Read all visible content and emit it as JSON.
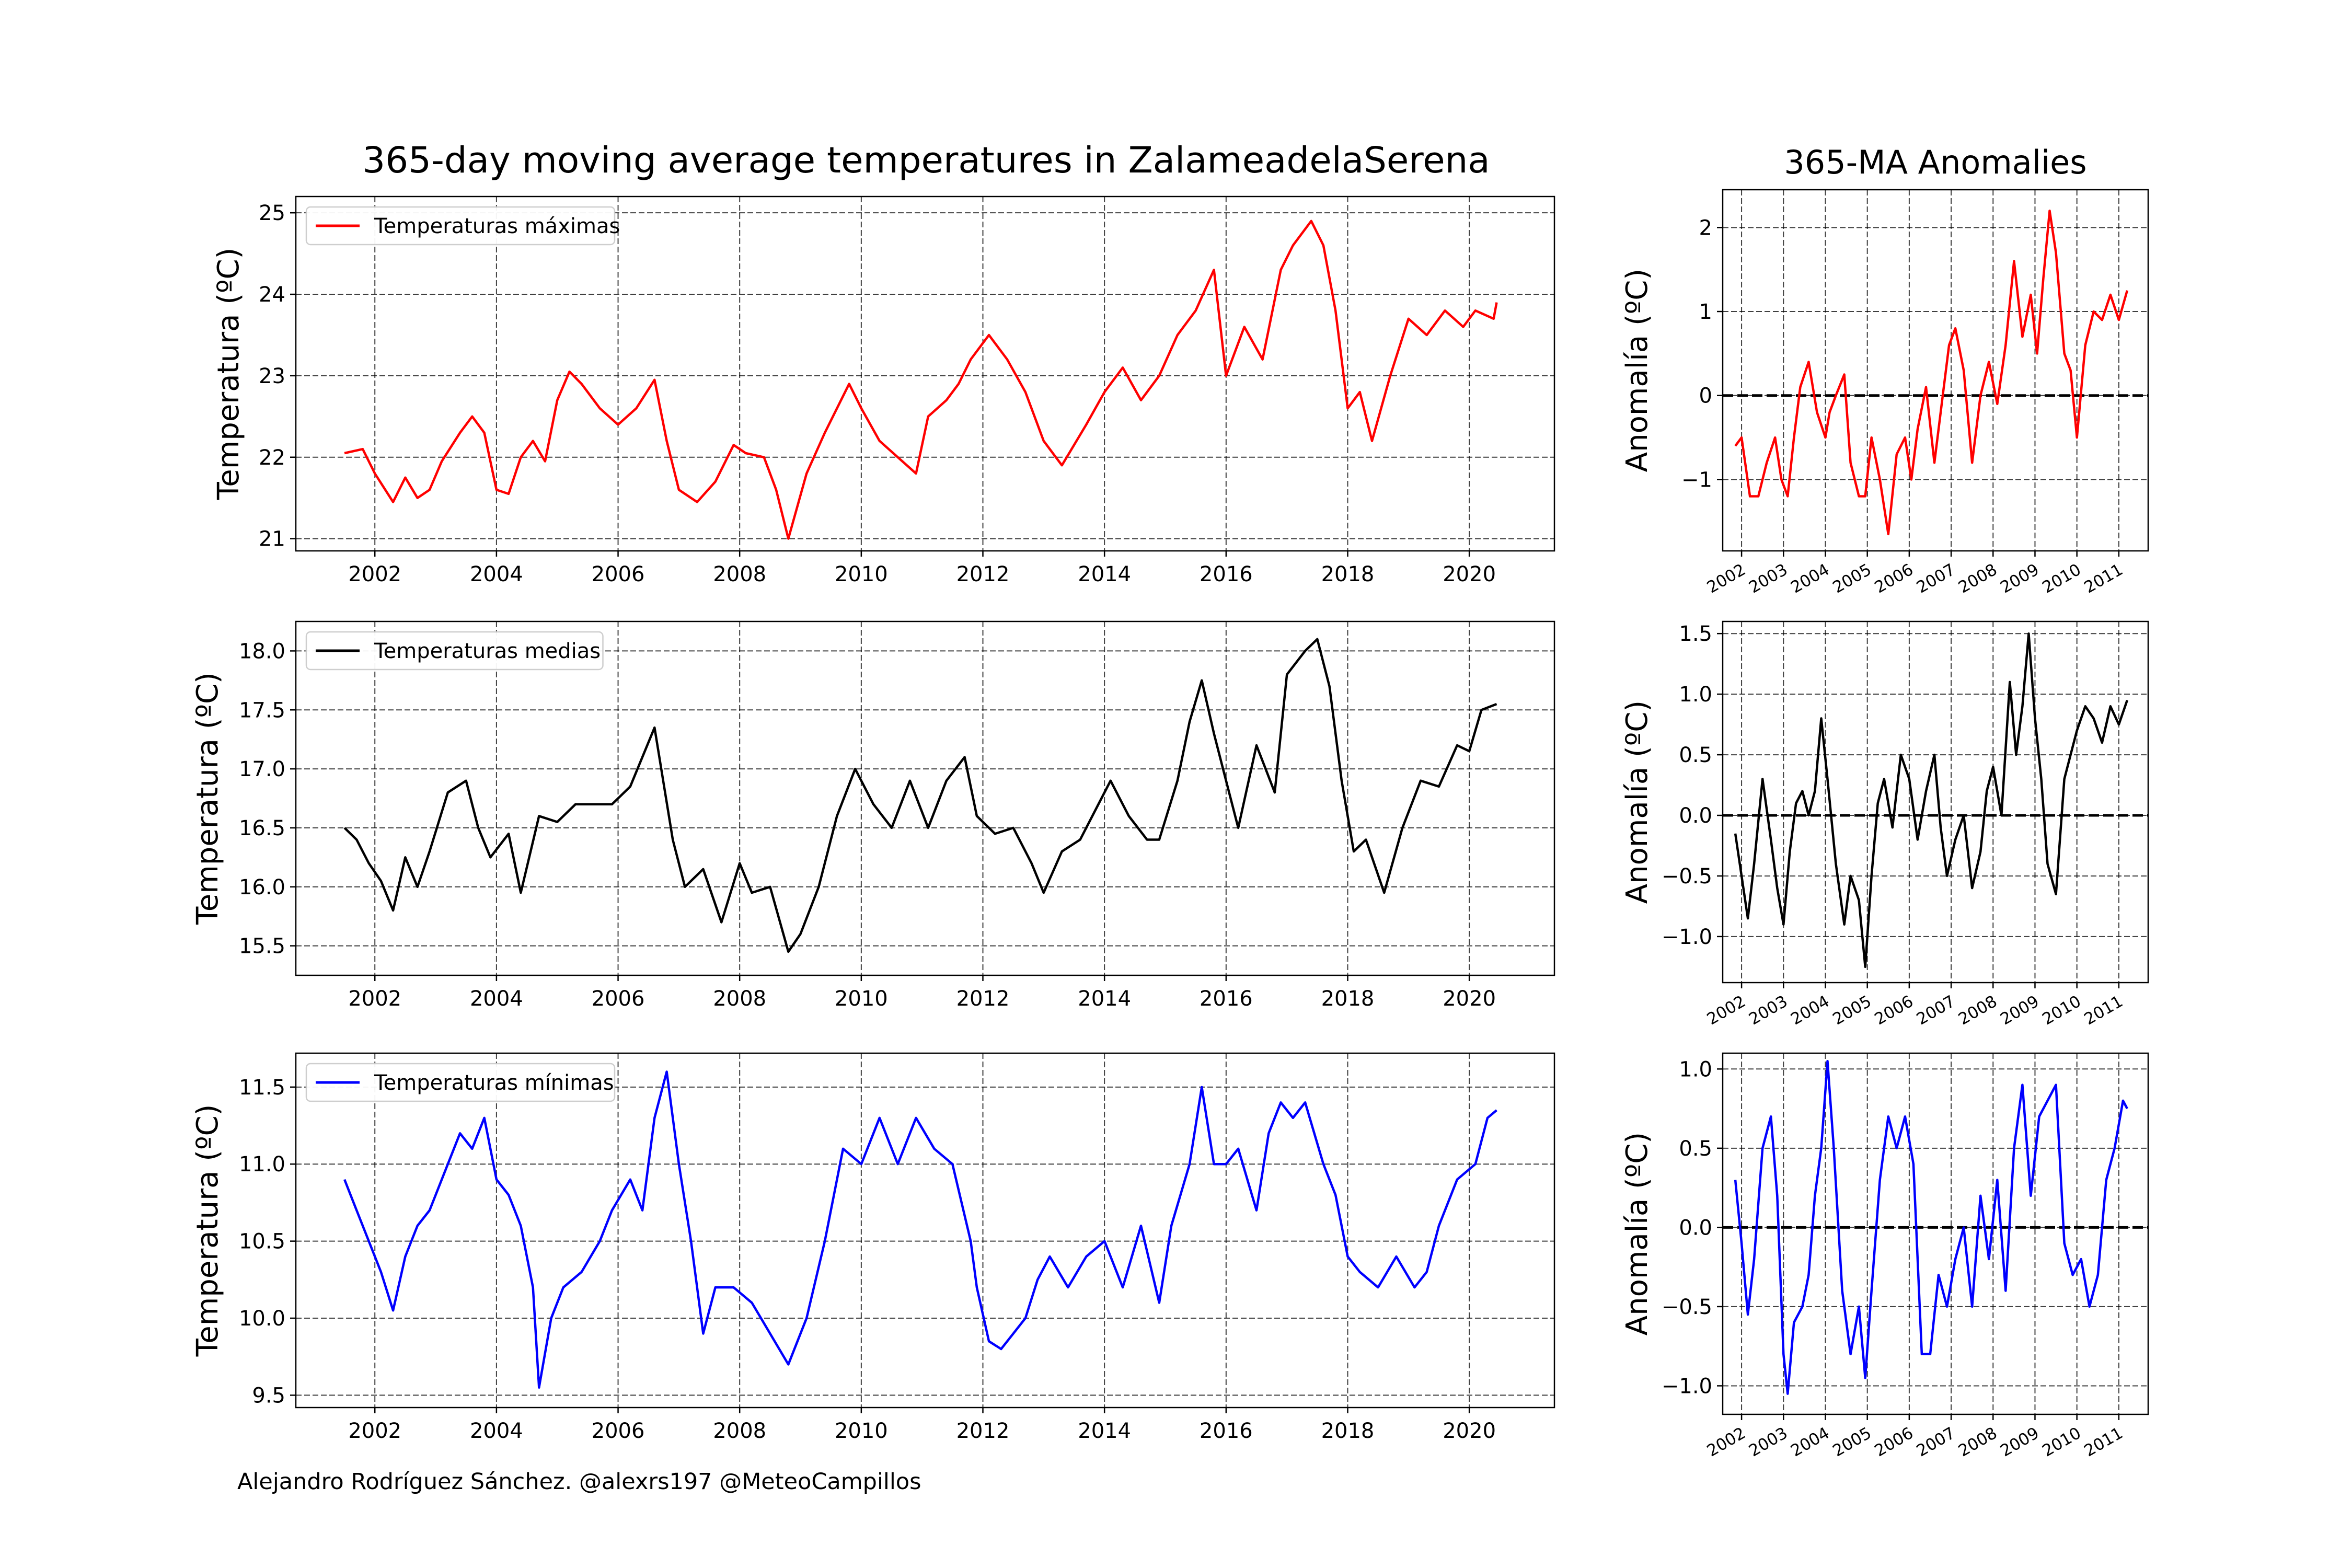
{
  "figure": {
    "main_title": "365-day moving average temperatures in ZalameadelaSerena",
    "side_title": "365-MA Anomalies",
    "credit": "Alejandro Rodríguez Sánchez. @alexrs197 @MeteoCampillos"
  },
  "chart_data": [
    {
      "id": "max",
      "type": "line",
      "title": "365-day moving average temperatures in ZalameadelaSerena",
      "ylabel": "Temperatura (ºC)",
      "legend": "Temperaturas máximas",
      "legend_position": "upper-left",
      "color": "#ff0000",
      "grid": true,
      "xlim": [
        2000.7,
        2021.4
      ],
      "ylim": [
        20.85,
        25.2
      ],
      "x_ticks": [
        2002,
        2004,
        2006,
        2008,
        2010,
        2012,
        2014,
        2016,
        2018,
        2020
      ],
      "y_ticks": [
        21,
        22,
        23,
        24,
        25
      ],
      "series": [
        {
          "name": "Temperaturas máximas",
          "x": [
            2001.5,
            2001.8,
            2002.0,
            2002.3,
            2002.5,
            2002.7,
            2002.9,
            2003.1,
            2003.4,
            2003.6,
            2003.8,
            2004.0,
            2004.2,
            2004.4,
            2004.6,
            2004.8,
            2005.0,
            2005.2,
            2005.4,
            2005.7,
            2006.0,
            2006.3,
            2006.6,
            2006.8,
            2007.0,
            2007.3,
            2007.6,
            2007.9,
            2008.1,
            2008.4,
            2008.6,
            2008.8,
            2009.1,
            2009.4,
            2009.8,
            2010.0,
            2010.3,
            2010.6,
            2010.9,
            2011.1,
            2011.4,
            2011.6,
            2011.8,
            2012.1,
            2012.4,
            2012.7,
            2013.0,
            2013.3,
            2013.7,
            2014.0,
            2014.3,
            2014.6,
            2014.9,
            2015.2,
            2015.5,
            2015.8,
            2016.0,
            2016.3,
            2016.6,
            2016.9,
            2017.1,
            2017.4,
            2017.6,
            2017.8,
            2018.0,
            2018.2,
            2018.4,
            2018.7,
            2019.0,
            2019.3,
            2019.6,
            2019.9,
            2020.1,
            2020.4,
            2020.45
          ],
          "y": [
            22.05,
            22.1,
            21.8,
            21.45,
            21.75,
            21.5,
            21.6,
            21.95,
            22.3,
            22.5,
            22.3,
            21.6,
            21.55,
            22.0,
            22.2,
            21.95,
            22.7,
            23.05,
            22.9,
            22.6,
            22.4,
            22.6,
            22.95,
            22.2,
            21.6,
            21.45,
            21.7,
            22.15,
            22.05,
            22.0,
            21.6,
            21.0,
            21.8,
            22.3,
            22.9,
            22.6,
            22.2,
            22.0,
            21.8,
            22.5,
            22.7,
            22.9,
            23.2,
            23.5,
            23.2,
            22.8,
            22.2,
            21.9,
            22.4,
            22.8,
            23.1,
            22.7,
            23.0,
            23.5,
            23.8,
            24.3,
            23.0,
            23.6,
            23.2,
            24.3,
            24.6,
            24.9,
            24.6,
            23.8,
            22.6,
            22.8,
            22.2,
            23.0,
            23.7,
            23.5,
            23.8,
            23.6,
            23.8,
            23.7,
            23.9
          ]
        }
      ]
    },
    {
      "id": "mean",
      "type": "line",
      "ylabel": "Temperatura (ºC)",
      "legend": "Temperaturas medias",
      "legend_position": "upper-left",
      "color": "#000000",
      "grid": true,
      "xlim": [
        2000.7,
        2021.4
      ],
      "ylim": [
        15.25,
        18.25
      ],
      "x_ticks": [
        2002,
        2004,
        2006,
        2008,
        2010,
        2012,
        2014,
        2016,
        2018,
        2020
      ],
      "y_ticks": [
        15.5,
        16.0,
        16.5,
        17.0,
        17.5,
        18.0
      ],
      "series": [
        {
          "name": "Temperaturas medias",
          "x": [
            2001.5,
            2001.7,
            2001.9,
            2002.1,
            2002.3,
            2002.5,
            2002.7,
            2002.9,
            2003.2,
            2003.5,
            2003.7,
            2003.9,
            2004.2,
            2004.4,
            2004.7,
            2005.0,
            2005.3,
            2005.6,
            2005.9,
            2006.2,
            2006.6,
            2006.9,
            2007.1,
            2007.4,
            2007.7,
            2008.0,
            2008.2,
            2008.5,
            2008.8,
            2009.0,
            2009.3,
            2009.6,
            2009.9,
            2010.2,
            2010.5,
            2010.8,
            2011.1,
            2011.4,
            2011.7,
            2011.9,
            2012.2,
            2012.5,
            2012.8,
            2013.0,
            2013.3,
            2013.6,
            2013.9,
            2014.1,
            2014.4,
            2014.7,
            2014.9,
            2015.2,
            2015.4,
            2015.6,
            2015.8,
            2016.0,
            2016.2,
            2016.5,
            2016.8,
            2017.0,
            2017.3,
            2017.5,
            2017.7,
            2017.9,
            2018.1,
            2018.3,
            2018.6,
            2018.9,
            2019.2,
            2019.5,
            2019.8,
            2020.0,
            2020.2,
            2020.45
          ],
          "y": [
            16.5,
            16.4,
            16.2,
            16.05,
            15.8,
            16.25,
            16.0,
            16.3,
            16.8,
            16.9,
            16.5,
            16.25,
            16.45,
            15.95,
            16.6,
            16.55,
            16.7,
            16.7,
            16.7,
            16.85,
            17.35,
            16.4,
            16.0,
            16.15,
            15.7,
            16.2,
            15.95,
            16.0,
            15.45,
            15.6,
            16.0,
            16.6,
            17.0,
            16.7,
            16.5,
            16.9,
            16.5,
            16.9,
            17.1,
            16.6,
            16.45,
            16.5,
            16.2,
            15.95,
            16.3,
            16.4,
            16.7,
            16.9,
            16.6,
            16.4,
            16.4,
            16.9,
            17.4,
            17.75,
            17.3,
            16.9,
            16.5,
            17.2,
            16.8,
            17.8,
            18.0,
            18.1,
            17.7,
            16.9,
            16.3,
            16.4,
            15.95,
            16.5,
            16.9,
            16.85,
            17.2,
            17.15,
            17.5,
            17.55
          ]
        }
      ]
    },
    {
      "id": "min",
      "type": "line",
      "ylabel": "Temperatura (ºC)",
      "legend": "Temperaturas mínimas",
      "legend_position": "upper-left",
      "color": "#0000ff",
      "grid": true,
      "xlim": [
        2000.7,
        2021.4
      ],
      "ylim": [
        9.42,
        11.72
      ],
      "x_ticks": [
        2002,
        2004,
        2006,
        2008,
        2010,
        2012,
        2014,
        2016,
        2018,
        2020
      ],
      "y_ticks": [
        9.5,
        10.0,
        10.5,
        11.0,
        11.5
      ],
      "series": [
        {
          "name": "Temperaturas mínimas",
          "x": [
            2001.5,
            2001.7,
            2001.9,
            2002.1,
            2002.3,
            2002.5,
            2002.7,
            2002.9,
            2003.1,
            2003.4,
            2003.6,
            2003.8,
            2004.0,
            2004.2,
            2004.4,
            2004.6,
            2004.7,
            2004.9,
            2005.1,
            2005.4,
            2005.7,
            2005.9,
            2006.2,
            2006.4,
            2006.6,
            2006.8,
            2007.0,
            2007.2,
            2007.4,
            2007.6,
            2007.9,
            2008.2,
            2008.5,
            2008.8,
            2009.1,
            2009.4,
            2009.7,
            2010.0,
            2010.3,
            2010.6,
            2010.9,
            2011.2,
            2011.5,
            2011.8,
            2011.9,
            2012.1,
            2012.3,
            2012.5,
            2012.7,
            2012.9,
            2013.1,
            2013.4,
            2013.7,
            2014.0,
            2014.3,
            2014.6,
            2014.9,
            2015.1,
            2015.4,
            2015.6,
            2015.8,
            2016.0,
            2016.2,
            2016.5,
            2016.7,
            2016.9,
            2017.1,
            2017.3,
            2017.6,
            2017.8,
            2018.0,
            2018.2,
            2018.5,
            2018.8,
            2019.1,
            2019.3,
            2019.5,
            2019.8,
            2020.1,
            2020.3,
            2020.45
          ],
          "y": [
            10.9,
            10.7,
            10.5,
            10.3,
            10.05,
            10.4,
            10.6,
            10.7,
            10.9,
            11.2,
            11.1,
            11.3,
            10.9,
            10.8,
            10.6,
            10.2,
            9.55,
            10.0,
            10.2,
            10.3,
            10.5,
            10.7,
            10.9,
            10.7,
            11.3,
            11.6,
            11.0,
            10.5,
            9.9,
            10.2,
            10.2,
            10.1,
            9.9,
            9.7,
            10.0,
            10.5,
            11.1,
            11.0,
            11.3,
            11.0,
            11.3,
            11.1,
            11.0,
            10.5,
            10.2,
            9.85,
            9.8,
            9.9,
            10.0,
            10.25,
            10.4,
            10.2,
            10.4,
            10.5,
            10.2,
            10.6,
            10.1,
            10.6,
            11.0,
            11.5,
            11.0,
            11.0,
            11.1,
            10.7,
            11.2,
            11.4,
            11.3,
            11.4,
            11.0,
            10.8,
            10.4,
            10.3,
            10.2,
            10.4,
            10.2,
            10.3,
            10.6,
            10.9,
            11.0,
            11.3,
            11.35
          ]
        }
      ]
    },
    {
      "id": "anom_max",
      "type": "line",
      "title": "365-MA Anomalies",
      "ylabel": "Anomalía (ºC)",
      "color": "#ff0000",
      "grid": true,
      "baseline": 0,
      "xlim": [
        2001.55,
        2011.7
      ],
      "ylim": [
        -1.85,
        2.45
      ],
      "x_ticks": [
        2002,
        2003,
        2004,
        2005,
        2006,
        2007,
        2008,
        2009,
        2010,
        2011
      ],
      "y_ticks": [
        -1,
        0,
        1,
        2
      ],
      "series": [
        {
          "name": "",
          "x": [
            2001.85,
            2002.0,
            2002.2,
            2002.4,
            2002.6,
            2002.8,
            2002.95,
            2003.1,
            2003.25,
            2003.4,
            2003.6,
            2003.8,
            2004.0,
            2004.1,
            2004.25,
            2004.45,
            2004.6,
            2004.8,
            2004.95,
            2005.1,
            2005.3,
            2005.5,
            2005.7,
            2005.9,
            2006.05,
            2006.2,
            2006.4,
            2006.6,
            2006.8,
            2006.95,
            2007.1,
            2007.3,
            2007.5,
            2007.7,
            2007.9,
            2008.1,
            2008.3,
            2008.5,
            2008.7,
            2008.9,
            2009.05,
            2009.2,
            2009.35,
            2009.5,
            2009.7,
            2009.85,
            2010.0,
            2010.2,
            2010.4,
            2010.6,
            2010.8,
            2011.0,
            2011.2
          ],
          "y": [
            -0.6,
            -0.5,
            -1.2,
            -1.2,
            -0.8,
            -0.5,
            -1.0,
            -1.2,
            -0.5,
            0.1,
            0.4,
            -0.2,
            -0.5,
            -0.2,
            0.0,
            0.25,
            -0.8,
            -1.2,
            -1.2,
            -0.5,
            -1.0,
            -1.65,
            -0.7,
            -0.5,
            -1.0,
            -0.4,
            0.1,
            -0.8,
            0.0,
            0.6,
            0.8,
            0.3,
            -0.8,
            0.0,
            0.4,
            -0.1,
            0.6,
            1.6,
            0.7,
            1.2,
            0.5,
            1.4,
            2.2,
            1.7,
            0.5,
            0.3,
            -0.5,
            0.6,
            1.0,
            0.9,
            1.2,
            0.9,
            1.25
          ]
        }
      ]
    },
    {
      "id": "anom_mean",
      "type": "line",
      "ylabel": "Anomalía (ºC)",
      "color": "#000000",
      "grid": true,
      "baseline": 0,
      "xlim": [
        2001.55,
        2011.7
      ],
      "ylim": [
        -1.38,
        1.6
      ],
      "x_ticks": [
        2002,
        2003,
        2004,
        2005,
        2006,
        2007,
        2008,
        2009,
        2010,
        2011
      ],
      "y_ticks": [
        -1.0,
        -0.5,
        0.0,
        0.5,
        1.0,
        1.5
      ],
      "series": [
        {
          "name": "",
          "x": [
            2001.85,
            2002.0,
            2002.15,
            2002.3,
            2002.5,
            2002.7,
            2002.85,
            2003.0,
            2003.15,
            2003.3,
            2003.45,
            2003.6,
            2003.75,
            2003.9,
            2004.05,
            2004.25,
            2004.45,
            2004.6,
            2004.8,
            2004.95,
            2005.1,
            2005.25,
            2005.4,
            2005.6,
            2005.8,
            2006.0,
            2006.2,
            2006.4,
            2006.6,
            2006.75,
            2006.9,
            2007.1,
            2007.3,
            2007.5,
            2007.7,
            2007.85,
            2008.0,
            2008.2,
            2008.4,
            2008.55,
            2008.7,
            2008.85,
            2009.0,
            2009.15,
            2009.3,
            2009.5,
            2009.7,
            2009.85,
            2010.0,
            2010.2,
            2010.4,
            2010.6,
            2010.8,
            2011.0,
            2011.2
          ],
          "y": [
            -0.15,
            -0.5,
            -0.85,
            -0.4,
            0.3,
            -0.2,
            -0.6,
            -0.9,
            -0.3,
            0.1,
            0.2,
            0.0,
            0.2,
            0.8,
            0.3,
            -0.4,
            -0.9,
            -0.5,
            -0.7,
            -1.25,
            -0.5,
            0.1,
            0.3,
            -0.1,
            0.5,
            0.3,
            -0.2,
            0.2,
            0.5,
            -0.1,
            -0.5,
            -0.2,
            0.0,
            -0.6,
            -0.3,
            0.2,
            0.4,
            0.0,
            1.1,
            0.5,
            0.9,
            1.5,
            0.8,
            0.3,
            -0.4,
            -0.65,
            0.3,
            0.5,
            0.7,
            0.9,
            0.8,
            0.6,
            0.9,
            0.75,
            0.95
          ]
        }
      ]
    },
    {
      "id": "anom_min",
      "type": "line",
      "ylabel": "Anomalía (ºC)",
      "color": "#0000ff",
      "grid": true,
      "baseline": 0,
      "xlim": [
        2001.55,
        2011.7
      ],
      "ylim": [
        -1.18,
        1.1
      ],
      "x_ticks": [
        2002,
        2003,
        2004,
        2005,
        2006,
        2007,
        2008,
        2009,
        2010,
        2011
      ],
      "y_ticks": [
        -1.0,
        -0.5,
        0.0,
        0.5,
        1.0
      ],
      "series": [
        {
          "name": "",
          "x": [
            2001.85,
            2002.0,
            2002.15,
            2002.3,
            2002.5,
            2002.7,
            2002.85,
            2003.0,
            2003.1,
            2003.25,
            2003.45,
            2003.6,
            2003.75,
            2003.9,
            2004.05,
            2004.2,
            2004.4,
            2004.6,
            2004.8,
            2004.95,
            2005.1,
            2005.3,
            2005.5,
            2005.7,
            2005.9,
            2006.1,
            2006.3,
            2006.5,
            2006.7,
            2006.9,
            2007.1,
            2007.3,
            2007.5,
            2007.7,
            2007.9,
            2008.1,
            2008.3,
            2008.5,
            2008.7,
            2008.9,
            2009.1,
            2009.3,
            2009.5,
            2009.7,
            2009.9,
            2010.1,
            2010.3,
            2010.5,
            2010.7,
            2010.9,
            2011.1,
            2011.2
          ],
          "y": [
            0.3,
            -0.1,
            -0.55,
            -0.2,
            0.5,
            0.7,
            0.2,
            -0.8,
            -1.05,
            -0.6,
            -0.5,
            -0.3,
            0.2,
            0.5,
            1.05,
            0.5,
            -0.4,
            -0.8,
            -0.5,
            -0.95,
            -0.4,
            0.3,
            0.7,
            0.5,
            0.7,
            0.4,
            -0.8,
            -0.8,
            -0.3,
            -0.5,
            -0.2,
            0.0,
            -0.5,
            0.2,
            -0.2,
            0.3,
            -0.4,
            0.5,
            0.9,
            0.2,
            0.7,
            0.8,
            0.9,
            -0.1,
            -0.3,
            -0.2,
            -0.5,
            -0.3,
            0.3,
            0.5,
            0.8,
            0.75
          ]
        }
      ]
    }
  ]
}
